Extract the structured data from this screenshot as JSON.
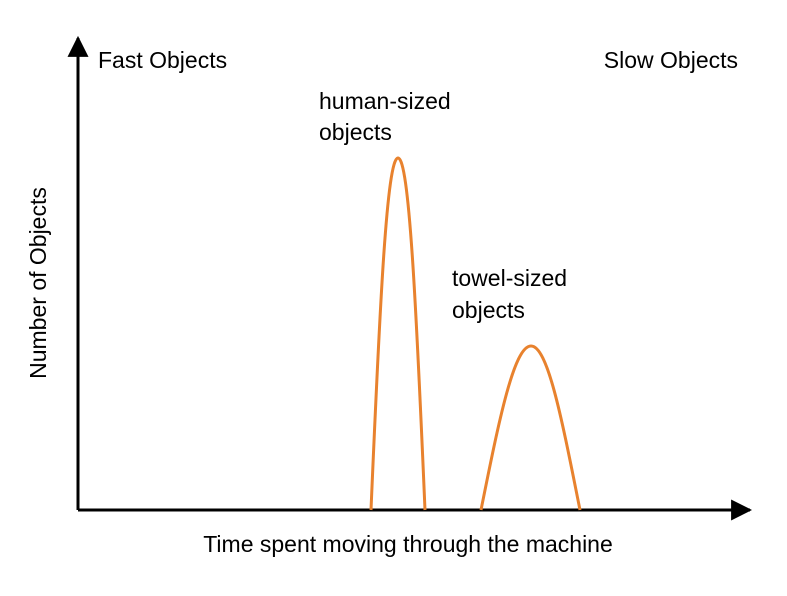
{
  "axes": {
    "x_label": "Time spent moving through the machine",
    "y_label": "Number of Objects"
  },
  "corner_labels": {
    "left": "Fast Objects",
    "right": "Slow Objects"
  },
  "annotations": [
    {
      "lines": [
        "human-sized",
        "objects"
      ]
    },
    {
      "lines": [
        "towel-sized",
        "objects"
      ]
    }
  ]
}
